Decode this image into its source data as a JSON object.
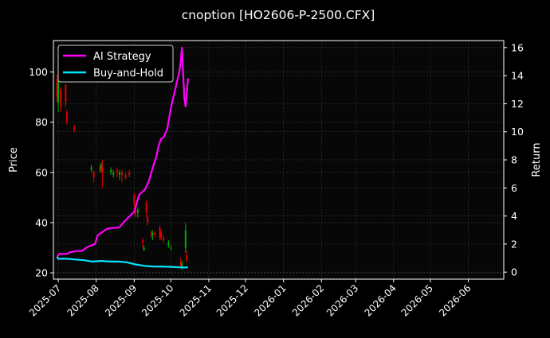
{
  "chart_data": {
    "type": "line",
    "title": "cnoption [HO2606-P-2500.CFX]",
    "xlabel": "",
    "ylabel_left": "Price",
    "ylabel_right": "Return",
    "x_axis": {
      "type": "date",
      "range": [
        "2025-06-27",
        "2026-06-30"
      ],
      "tick_labels": [
        "2025-07",
        "2025-08",
        "2025-09",
        "2025-10",
        "2025-11",
        "2025-12",
        "2026-01",
        "2026-02",
        "2026-03",
        "2026-04",
        "2026-05",
        "2026-06"
      ]
    },
    "y_left": {
      "range": [
        17.5,
        112.5
      ],
      "ticks": [
        20,
        40,
        60,
        80,
        100
      ]
    },
    "y_right": {
      "range": [
        -0.5,
        16.5
      ],
      "ticks": [
        0,
        2,
        4,
        6,
        8,
        10,
        12,
        14,
        16
      ]
    },
    "grid": true,
    "legend": {
      "placement": "top-left"
    },
    "colors": {
      "background": "#000000",
      "grid": "#3a3a3a",
      "axis": "#ffffff",
      "text": "#ffffff",
      "candle_up": "#00b000",
      "candle_down": "#e00000"
    },
    "series": [
      {
        "name": "AI Strategy",
        "axis": "right",
        "color": "#ff00ff",
        "x": [
          "2025-06-30",
          "2025-07-02",
          "2025-07-08",
          "2025-07-10",
          "2025-07-15",
          "2025-07-20",
          "2025-07-25",
          "2025-07-31",
          "2025-08-02",
          "2025-08-05",
          "2025-08-10",
          "2025-08-20",
          "2025-08-25",
          "2025-09-01",
          "2025-09-05",
          "2025-09-10",
          "2025-09-13",
          "2025-09-16",
          "2025-09-19",
          "2025-09-21",
          "2025-09-23",
          "2025-09-25",
          "2025-09-28",
          "2025-10-01",
          "2025-10-04",
          "2025-10-06",
          "2025-10-08",
          "2025-10-09",
          "2025-10-10",
          "2025-10-12",
          "2025-10-13",
          "2025-10-15"
        ],
        "values": [
          1.1,
          1.3,
          1.3,
          1.4,
          1.5,
          1.5,
          1.8,
          2.0,
          2.6,
          2.8,
          3.1,
          3.2,
          3.7,
          4.3,
          5.5,
          5.9,
          6.5,
          7.4,
          8.2,
          9.0,
          9.5,
          9.6,
          10.2,
          11.7,
          12.8,
          13.6,
          14.3,
          15.0,
          16.0,
          12.4,
          11.8,
          13.8
        ]
      },
      {
        "name": "Buy-and-Hold",
        "axis": "right",
        "color": "#00e5ff",
        "x": [
          "2025-06-30",
          "2025-07-01",
          "2025-07-08",
          "2025-07-15",
          "2025-07-22",
          "2025-07-29",
          "2025-08-05",
          "2025-08-12",
          "2025-08-19",
          "2025-08-26",
          "2025-09-02",
          "2025-09-09",
          "2025-09-16",
          "2025-09-23",
          "2025-09-30",
          "2025-10-07",
          "2025-10-12",
          "2025-10-15"
        ],
        "values": [
          1.1,
          0.95,
          0.95,
          0.9,
          0.85,
          0.75,
          0.8,
          0.75,
          0.75,
          0.7,
          0.55,
          0.45,
          0.4,
          0.4,
          0.38,
          0.35,
          0.33,
          0.35
        ]
      }
    ],
    "candles": [
      {
        "x": "2025-06-30",
        "open": 97,
        "close": 90,
        "high": 99,
        "low": 88
      },
      {
        "x": "2025-07-01",
        "open": 88,
        "close": 96,
        "high": 97,
        "low": 84
      },
      {
        "x": "2025-07-03",
        "open": 93,
        "close": 86,
        "high": 94,
        "low": 84
      },
      {
        "x": "2025-07-07",
        "open": 95,
        "close": 88,
        "high": 95,
        "low": 86
      },
      {
        "x": "2025-07-08",
        "open": 84,
        "close": 80,
        "high": 85,
        "low": 79
      },
      {
        "x": "2025-07-14",
        "open": 78,
        "close": 77,
        "high": 79,
        "low": 76
      },
      {
        "x": "2025-07-28",
        "open": 61,
        "close": 62,
        "high": 63,
        "low": 60
      },
      {
        "x": "2025-07-30",
        "open": 60,
        "close": 58,
        "high": 61,
        "low": 56
      },
      {
        "x": "2025-08-04",
        "open": 62,
        "close": 61,
        "high": 63,
        "low": 60
      },
      {
        "x": "2025-08-05",
        "open": 62,
        "close": 63,
        "high": 64,
        "low": 60
      },
      {
        "x": "2025-08-06",
        "open": 62,
        "close": 60,
        "high": 65,
        "low": 54
      },
      {
        "x": "2025-08-13",
        "open": 60,
        "close": 61,
        "high": 62,
        "low": 59
      },
      {
        "x": "2025-08-15",
        "open": 59,
        "close": 60,
        "high": 61,
        "low": 58
      },
      {
        "x": "2025-08-18",
        "open": 61,
        "close": 60,
        "high": 62,
        "low": 58
      },
      {
        "x": "2025-08-20",
        "open": 59,
        "close": 60,
        "high": 61,
        "low": 57
      },
      {
        "x": "2025-08-22",
        "open": 60,
        "close": 59,
        "high": 61,
        "low": 56
      },
      {
        "x": "2025-08-25",
        "open": 59,
        "close": 58,
        "high": 60,
        "low": 57
      },
      {
        "x": "2025-08-28",
        "open": 60,
        "close": 59,
        "high": 61,
        "low": 58
      },
      {
        "x": "2025-09-01",
        "open": 51,
        "close": 47,
        "high": 52,
        "low": 45
      },
      {
        "x": "2025-09-02",
        "open": 46,
        "close": 43,
        "high": 47,
        "low": 42
      },
      {
        "x": "2025-09-04",
        "open": 44,
        "close": 45,
        "high": 46,
        "low": 42
      },
      {
        "x": "2025-09-08",
        "open": 33,
        "close": 32,
        "high": 34,
        "low": 30
      },
      {
        "x": "2025-09-09",
        "open": 29,
        "close": 30,
        "high": 31,
        "low": 29
      },
      {
        "x": "2025-09-11",
        "open": 48,
        "close": 44,
        "high": 49,
        "low": 42
      },
      {
        "x": "2025-09-12",
        "open": 42,
        "close": 40,
        "high": 43,
        "low": 39
      },
      {
        "x": "2025-09-15",
        "open": 36,
        "close": 35,
        "high": 37,
        "low": 34
      },
      {
        "x": "2025-09-16",
        "open": 35,
        "close": 36,
        "high": 37,
        "low": 33
      },
      {
        "x": "2025-09-18",
        "open": 36,
        "close": 35,
        "high": 37,
        "low": 34
      },
      {
        "x": "2025-09-22",
        "open": 38,
        "close": 34,
        "high": 39,
        "low": 33
      },
      {
        "x": "2025-09-23",
        "open": 36,
        "close": 34,
        "high": 37,
        "low": 33
      },
      {
        "x": "2025-09-25",
        "open": 34,
        "close": 33,
        "high": 35,
        "low": 32
      },
      {
        "x": "2025-09-29",
        "open": 31,
        "close": 32,
        "high": 33,
        "low": 30
      },
      {
        "x": "2025-10-01",
        "open": 30,
        "close": 30,
        "high": 31,
        "low": 29
      },
      {
        "x": "2025-10-09",
        "open": 24,
        "close": 23,
        "high": 26,
        "low": 22
      },
      {
        "x": "2025-10-10",
        "open": 22,
        "close": 24,
        "high": 25,
        "low": 21
      },
      {
        "x": "2025-10-13",
        "open": 30,
        "close": 37,
        "high": 40,
        "low": 28
      },
      {
        "x": "2025-10-14",
        "open": 27,
        "close": 25,
        "high": 29,
        "low": 24
      }
    ]
  }
}
